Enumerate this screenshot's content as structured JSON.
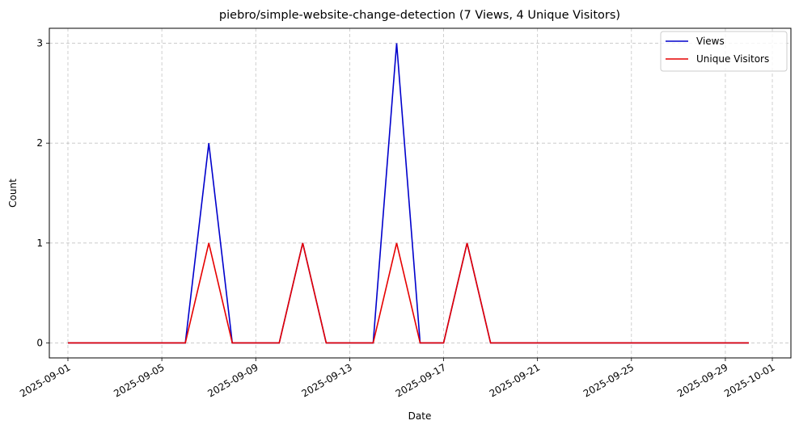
{
  "chart_data": {
    "type": "line",
    "title": "piebro/simple-website-change-detection (7 Views, 4 Unique Visitors)",
    "xlabel": "Date",
    "ylabel": "Count",
    "ylim": [
      -0.15,
      3.15
    ],
    "xlim": [
      "2025-08-31T05:00",
      "2025-10-01T19:00"
    ],
    "x_ticks": [
      "2025-09-01",
      "2025-09-05",
      "2025-09-09",
      "2025-09-13",
      "2025-09-17",
      "2025-09-21",
      "2025-09-25",
      "2025-09-29",
      "2025-10-01"
    ],
    "y_ticks": [
      "0",
      "1",
      "2",
      "3"
    ],
    "grid": true,
    "legend_position": "top-right",
    "x": [
      "2025-09-01",
      "2025-09-02",
      "2025-09-03",
      "2025-09-04",
      "2025-09-05",
      "2025-09-06",
      "2025-09-07",
      "2025-09-08",
      "2025-09-09",
      "2025-09-10",
      "2025-09-11",
      "2025-09-12",
      "2025-09-13",
      "2025-09-14",
      "2025-09-15",
      "2025-09-16",
      "2025-09-17",
      "2025-09-18",
      "2025-09-19",
      "2025-09-20",
      "2025-09-21",
      "2025-09-22",
      "2025-09-23",
      "2025-09-24",
      "2025-09-25",
      "2025-09-26",
      "2025-09-27",
      "2025-09-28",
      "2025-09-29",
      "2025-09-30"
    ],
    "series": [
      {
        "name": "Views",
        "color": "#0000cc",
        "values": [
          0,
          0,
          0,
          0,
          0,
          0,
          2,
          0,
          0,
          0,
          1,
          0,
          0,
          0,
          3,
          0,
          0,
          1,
          0,
          0,
          0,
          0,
          0,
          0,
          0,
          0,
          0,
          0,
          0,
          0
        ]
      },
      {
        "name": "Unique Visitors",
        "color": "#e60000",
        "values": [
          0,
          0,
          0,
          0,
          0,
          0,
          1,
          0,
          0,
          0,
          1,
          0,
          0,
          0,
          1,
          0,
          0,
          1,
          0,
          0,
          0,
          0,
          0,
          0,
          0,
          0,
          0,
          0,
          0,
          0
        ]
      }
    ]
  }
}
